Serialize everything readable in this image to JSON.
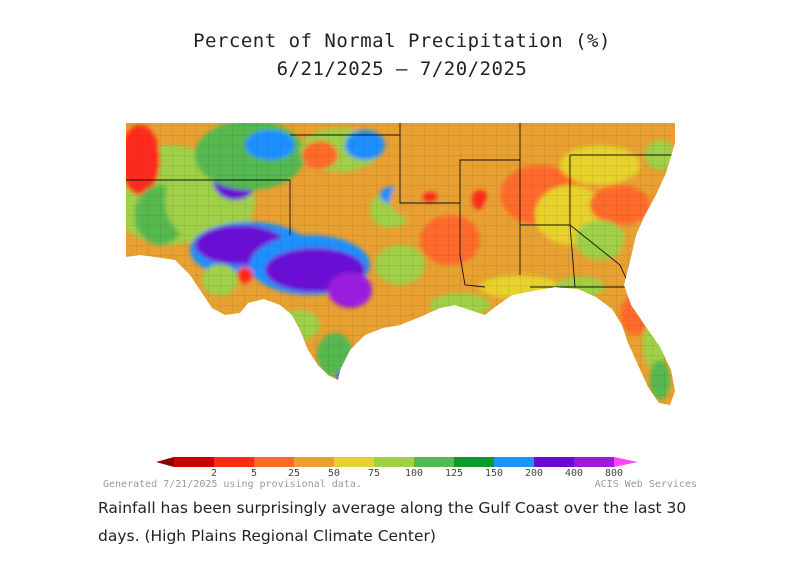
{
  "map": {
    "title": "Percent of Normal Precipitation (%)",
    "subtitle": "6/21/2025 – 7/20/2025",
    "region": "Southern United States",
    "legend": {
      "breaks": [
        "2",
        "5",
        "25",
        "50",
        "75",
        "100",
        "125",
        "150",
        "200",
        "400",
        "800"
      ],
      "colors": [
        "#8b0000",
        "#cc0000",
        "#ff2a1a",
        "#ff6a2a",
        "#e8a030",
        "#e6d22c",
        "#9fd046",
        "#55b94f",
        "#0f9a2e",
        "#1e90ff",
        "#6a0ad6",
        "#9b1ae0",
        "#ff44ff"
      ]
    },
    "generated_note": "Generated 7/21/2025 using provisional data.",
    "credit": "ACIS Web Services"
  },
  "caption": "Rainfall has been surprisingly average along the Gulf Coast over the last 30 days. (High Plains Regional Climate Center)"
}
